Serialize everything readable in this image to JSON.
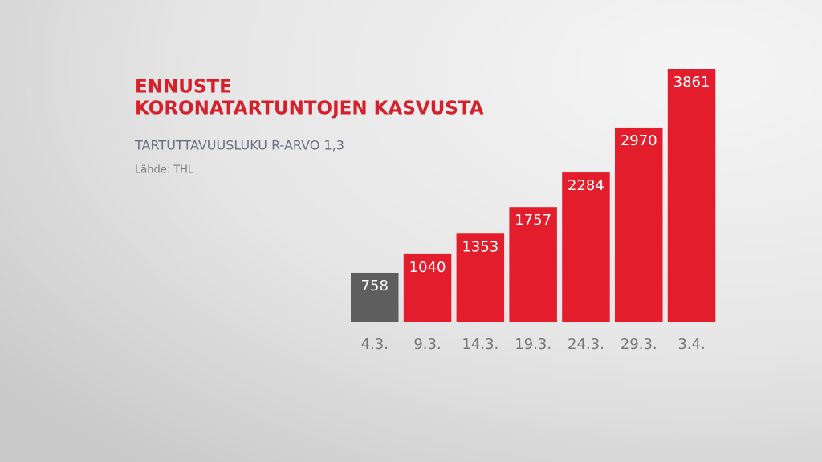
{
  "chart_data": {
    "type": "bar",
    "title": [
      "ENNUSTE",
      "KORONATARTUNTOJEN KASVUSTA"
    ],
    "subtitle": "TARTUTTAVUUSLUKU R-ARVO 1,3",
    "source": "Lähde: THL",
    "categories": [
      "4.3.",
      "9.3.",
      "14.3.",
      "19.3.",
      "24.3.",
      "29.3.",
      "3.4."
    ],
    "values": [
      758,
      1040,
      1353,
      1757,
      2284,
      2970,
      3861
    ],
    "colors": [
      "#5e5e5e",
      "#e31d2b",
      "#e31d2b",
      "#e31d2b",
      "#e31d2b",
      "#e31d2b",
      "#e31d2b"
    ]
  }
}
